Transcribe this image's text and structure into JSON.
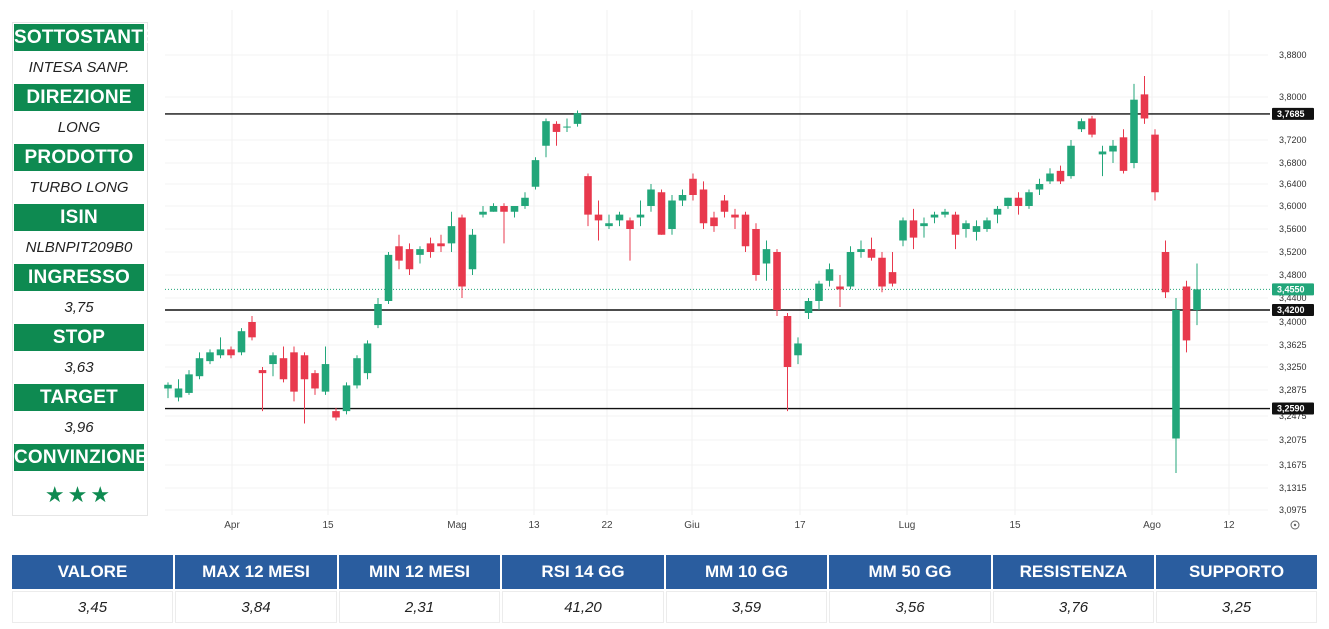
{
  "sidebar": {
    "items": [
      {
        "label": "SOTTOSTANTE",
        "value": "INTESA SANP."
      },
      {
        "label": "DIREZIONE",
        "value": "LONG"
      },
      {
        "label": "PRODOTTO",
        "value": "TURBO LONG"
      },
      {
        "label": "ISIN",
        "value": "NLBNPIT209B0"
      },
      {
        "label": "INGRESSO",
        "value": "3,75"
      },
      {
        "label": "STOP",
        "value": "3,63"
      },
      {
        "label": "TARGET",
        "value": "3,96"
      },
      {
        "label": "CONVINZIONE",
        "value": "★★★"
      }
    ]
  },
  "table": {
    "headers": [
      "VALORE",
      "MAX 12 MESI",
      "MIN 12 MESI",
      "RSI 14 GG",
      "MM 10 GG",
      "MM 50 GG",
      "RESISTENZA",
      "SUPPORTO"
    ],
    "values": [
      "3,45",
      "3,84",
      "2,31",
      "41,20",
      "3,59",
      "3,56",
      "3,76",
      "3,25"
    ]
  },
  "colors": {
    "up": "#22a67a",
    "down": "#e8394d",
    "header_green": "#0e8a51",
    "header_blue": "#2a5d9f"
  },
  "chart_data": {
    "type": "candlestick",
    "y_ticks": [
      3.88,
      3.8,
      3.72,
      3.68,
      3.64,
      3.6,
      3.56,
      3.52,
      3.48,
      3.44,
      3.4,
      3.3625,
      3.325,
      3.2875,
      3.2475,
      3.2075,
      3.1675,
      3.1315,
      3.0975
    ],
    "y_tick_labels": [
      "3,8800",
      "3,8000",
      "3,7200",
      "3,6800",
      "3,6400",
      "3,6000",
      "3,5600",
      "3,5200",
      "3,4800",
      "3,4400",
      "3,4000",
      "3,3625",
      "3,3250",
      "3,2875",
      "3,2475",
      "3,2075",
      "3,1675",
      "3,1315",
      "3,0975"
    ],
    "x_labels": [
      "Apr",
      "15",
      "Mag",
      "13",
      "22",
      "Giu",
      "17",
      "Lug",
      "15",
      "Ago",
      "12"
    ],
    "levels": [
      {
        "value": 3.7685,
        "label": "3,7685"
      },
      {
        "value": 3.42,
        "label": "3,4200"
      },
      {
        "value": 3.259,
        "label": "3,2590"
      }
    ],
    "last_price": {
      "value": 3.455,
      "label": "3,4550"
    },
    "candles": [
      {
        "o": 3.29,
        "h": 3.3,
        "l": 3.275,
        "c": 3.296
      },
      {
        "o": 3.276,
        "h": 3.305,
        "l": 3.27,
        "c": 3.29
      },
      {
        "o": 3.283,
        "h": 3.32,
        "l": 3.28,
        "c": 3.313
      },
      {
        "o": 3.31,
        "h": 3.35,
        "l": 3.305,
        "c": 3.34
      },
      {
        "o": 3.335,
        "h": 3.355,
        "l": 3.33,
        "c": 3.35
      },
      {
        "o": 3.345,
        "h": 3.375,
        "l": 3.34,
        "c": 3.355
      },
      {
        "o": 3.355,
        "h": 3.36,
        "l": 3.34,
        "c": 3.345
      },
      {
        "o": 3.35,
        "h": 3.39,
        "l": 3.345,
        "c": 3.385
      },
      {
        "o": 3.4,
        "h": 3.41,
        "l": 3.37,
        "c": 3.375
      },
      {
        "o": 3.32,
        "h": 3.325,
        "l": 3.255,
        "c": 3.315
      },
      {
        "o": 3.33,
        "h": 3.35,
        "l": 3.31,
        "c": 3.345
      },
      {
        "o": 3.34,
        "h": 3.36,
        "l": 3.3,
        "c": 3.305
      },
      {
        "o": 3.35,
        "h": 3.36,
        "l": 3.27,
        "c": 3.285
      },
      {
        "o": 3.345,
        "h": 3.35,
        "l": 3.235,
        "c": 3.305
      },
      {
        "o": 3.315,
        "h": 3.32,
        "l": 3.28,
        "c": 3.29
      },
      {
        "o": 3.285,
        "h": 3.36,
        "l": 3.28,
        "c": 3.33
      },
      {
        "o": 3.255,
        "h": 3.26,
        "l": 3.24,
        "c": 3.245
      },
      {
        "o": 3.255,
        "h": 3.3,
        "l": 3.25,
        "c": 3.295
      },
      {
        "o": 3.295,
        "h": 3.345,
        "l": 3.29,
        "c": 3.34
      },
      {
        "o": 3.315,
        "h": 3.37,
        "l": 3.305,
        "c": 3.365
      },
      {
        "o": 3.395,
        "h": 3.44,
        "l": 3.39,
        "c": 3.43
      },
      {
        "o": 3.435,
        "h": 3.52,
        "l": 3.43,
        "c": 3.515
      },
      {
        "o": 3.53,
        "h": 3.55,
        "l": 3.49,
        "c": 3.505
      },
      {
        "o": 3.525,
        "h": 3.535,
        "l": 3.48,
        "c": 3.49
      },
      {
        "o": 3.515,
        "h": 3.53,
        "l": 3.5,
        "c": 3.525
      },
      {
        "o": 3.535,
        "h": 3.545,
        "l": 3.51,
        "c": 3.52
      },
      {
        "o": 3.535,
        "h": 3.55,
        "l": 3.52,
        "c": 3.53
      },
      {
        "o": 3.535,
        "h": 3.59,
        "l": 3.52,
        "c": 3.565
      },
      {
        "o": 3.58,
        "h": 3.585,
        "l": 3.44,
        "c": 3.46
      },
      {
        "o": 3.49,
        "h": 3.56,
        "l": 3.48,
        "c": 3.55
      },
      {
        "o": 3.585,
        "h": 3.6,
        "l": 3.58,
        "c": 3.59
      },
      {
        "o": 3.59,
        "h": 3.605,
        "l": 3.59,
        "c": 3.6
      },
      {
        "o": 3.6,
        "h": 3.605,
        "l": 3.535,
        "c": 3.59
      },
      {
        "o": 3.59,
        "h": 3.6,
        "l": 3.58,
        "c": 3.6
      },
      {
        "o": 3.6,
        "h": 3.625,
        "l": 3.595,
        "c": 3.615
      },
      {
        "o": 3.635,
        "h": 3.69,
        "l": 3.63,
        "c": 3.685
      },
      {
        "o": 3.71,
        "h": 3.76,
        "l": 3.69,
        "c": 3.755
      },
      {
        "o": 3.75,
        "h": 3.755,
        "l": 3.71,
        "c": 3.735
      },
      {
        "o": 3.745,
        "h": 3.76,
        "l": 3.735,
        "c": 3.745
      },
      {
        "o": 3.75,
        "h": 3.775,
        "l": 3.745,
        "c": 3.77
      },
      {
        "o": 3.655,
        "h": 3.66,
        "l": 3.565,
        "c": 3.585
      },
      {
        "o": 3.585,
        "h": 3.61,
        "l": 3.54,
        "c": 3.575
      },
      {
        "o": 3.565,
        "h": 3.585,
        "l": 3.56,
        "c": 3.57
      },
      {
        "o": 3.575,
        "h": 3.59,
        "l": 3.565,
        "c": 3.585
      },
      {
        "o": 3.575,
        "h": 3.58,
        "l": 3.505,
        "c": 3.56
      },
      {
        "o": 3.58,
        "h": 3.61,
        "l": 3.565,
        "c": 3.585
      },
      {
        "o": 3.6,
        "h": 3.64,
        "l": 3.59,
        "c": 3.63
      },
      {
        "o": 3.625,
        "h": 3.63,
        "l": 3.55,
        "c": 3.55
      },
      {
        "o": 3.56,
        "h": 3.62,
        "l": 3.55,
        "c": 3.61
      },
      {
        "o": 3.61,
        "h": 3.63,
        "l": 3.6,
        "c": 3.62
      },
      {
        "o": 3.65,
        "h": 3.66,
        "l": 3.61,
        "c": 3.62
      },
      {
        "o": 3.63,
        "h": 3.645,
        "l": 3.56,
        "c": 3.57
      },
      {
        "o": 3.58,
        "h": 3.59,
        "l": 3.555,
        "c": 3.565
      },
      {
        "o": 3.61,
        "h": 3.62,
        "l": 3.58,
        "c": 3.59
      },
      {
        "o": 3.585,
        "h": 3.595,
        "l": 3.56,
        "c": 3.58
      },
      {
        "o": 3.585,
        "h": 3.59,
        "l": 3.52,
        "c": 3.53
      },
      {
        "o": 3.56,
        "h": 3.57,
        "l": 3.47,
        "c": 3.48
      },
      {
        "o": 3.5,
        "h": 3.54,
        "l": 3.47,
        "c": 3.525
      },
      {
        "o": 3.52,
        "h": 3.525,
        "l": 3.41,
        "c": 3.42
      },
      {
        "o": 3.41,
        "h": 3.415,
        "l": 3.255,
        "c": 3.325
      },
      {
        "o": 3.345,
        "h": 3.375,
        "l": 3.33,
        "c": 3.365
      },
      {
        "o": 3.415,
        "h": 3.44,
        "l": 3.405,
        "c": 3.435
      },
      {
        "o": 3.435,
        "h": 3.47,
        "l": 3.42,
        "c": 3.465
      },
      {
        "o": 3.47,
        "h": 3.5,
        "l": 3.46,
        "c": 3.49
      },
      {
        "o": 3.46,
        "h": 3.48,
        "l": 3.425,
        "c": 3.455
      },
      {
        "o": 3.46,
        "h": 3.53,
        "l": 3.455,
        "c": 3.52
      },
      {
        "o": 3.52,
        "h": 3.54,
        "l": 3.51,
        "c": 3.525
      },
      {
        "o": 3.525,
        "h": 3.545,
        "l": 3.505,
        "c": 3.51
      },
      {
        "o": 3.51,
        "h": 3.52,
        "l": 3.45,
        "c": 3.46
      },
      {
        "o": 3.485,
        "h": 3.52,
        "l": 3.46,
        "c": 3.465
      },
      {
        "o": 3.54,
        "h": 3.58,
        "l": 3.53,
        "c": 3.575
      },
      {
        "o": 3.575,
        "h": 3.595,
        "l": 3.525,
        "c": 3.545
      },
      {
        "o": 3.565,
        "h": 3.58,
        "l": 3.545,
        "c": 3.57
      },
      {
        "o": 3.58,
        "h": 3.59,
        "l": 3.57,
        "c": 3.585
      },
      {
        "o": 3.585,
        "h": 3.595,
        "l": 3.58,
        "c": 3.59
      },
      {
        "o": 3.585,
        "h": 3.59,
        "l": 3.525,
        "c": 3.55
      },
      {
        "o": 3.56,
        "h": 3.575,
        "l": 3.545,
        "c": 3.57
      },
      {
        "o": 3.555,
        "h": 3.575,
        "l": 3.54,
        "c": 3.565
      },
      {
        "o": 3.56,
        "h": 3.58,
        "l": 3.555,
        "c": 3.575
      },
      {
        "o": 3.585,
        "h": 3.6,
        "l": 3.57,
        "c": 3.595
      },
      {
        "o": 3.6,
        "h": 3.615,
        "l": 3.595,
        "c": 3.615
      },
      {
        "o": 3.615,
        "h": 3.625,
        "l": 3.585,
        "c": 3.6
      },
      {
        "o": 3.6,
        "h": 3.63,
        "l": 3.595,
        "c": 3.625
      },
      {
        "o": 3.63,
        "h": 3.65,
        "l": 3.62,
        "c": 3.64
      },
      {
        "o": 3.645,
        "h": 3.67,
        "l": 3.64,
        "c": 3.66
      },
      {
        "o": 3.665,
        "h": 3.675,
        "l": 3.64,
        "c": 3.645
      },
      {
        "o": 3.655,
        "h": 3.72,
        "l": 3.65,
        "c": 3.71
      },
      {
        "o": 3.74,
        "h": 3.76,
        "l": 3.735,
        "c": 3.755
      },
      {
        "o": 3.76,
        "h": 3.765,
        "l": 3.725,
        "c": 3.73
      },
      {
        "o": 3.695,
        "h": 3.71,
        "l": 3.655,
        "c": 3.7
      },
      {
        "o": 3.7,
        "h": 3.72,
        "l": 3.68,
        "c": 3.71
      },
      {
        "o": 3.725,
        "h": 3.74,
        "l": 3.66,
        "c": 3.665
      },
      {
        "o": 3.68,
        "h": 3.825,
        "l": 3.67,
        "c": 3.795
      },
      {
        "o": 3.805,
        "h": 3.84,
        "l": 3.75,
        "c": 3.76
      },
      {
        "o": 3.73,
        "h": 3.74,
        "l": 3.61,
        "c": 3.625
      },
      {
        "o": 3.52,
        "h": 3.54,
        "l": 3.44,
        "c": 3.45
      },
      {
        "o": 3.21,
        "h": 3.44,
        "l": 3.155,
        "c": 3.42
      },
      {
        "o": 3.46,
        "h": 3.47,
        "l": 3.35,
        "c": 3.37
      },
      {
        "o": 3.42,
        "h": 3.5,
        "l": 3.395,
        "c": 3.455
      }
    ]
  }
}
